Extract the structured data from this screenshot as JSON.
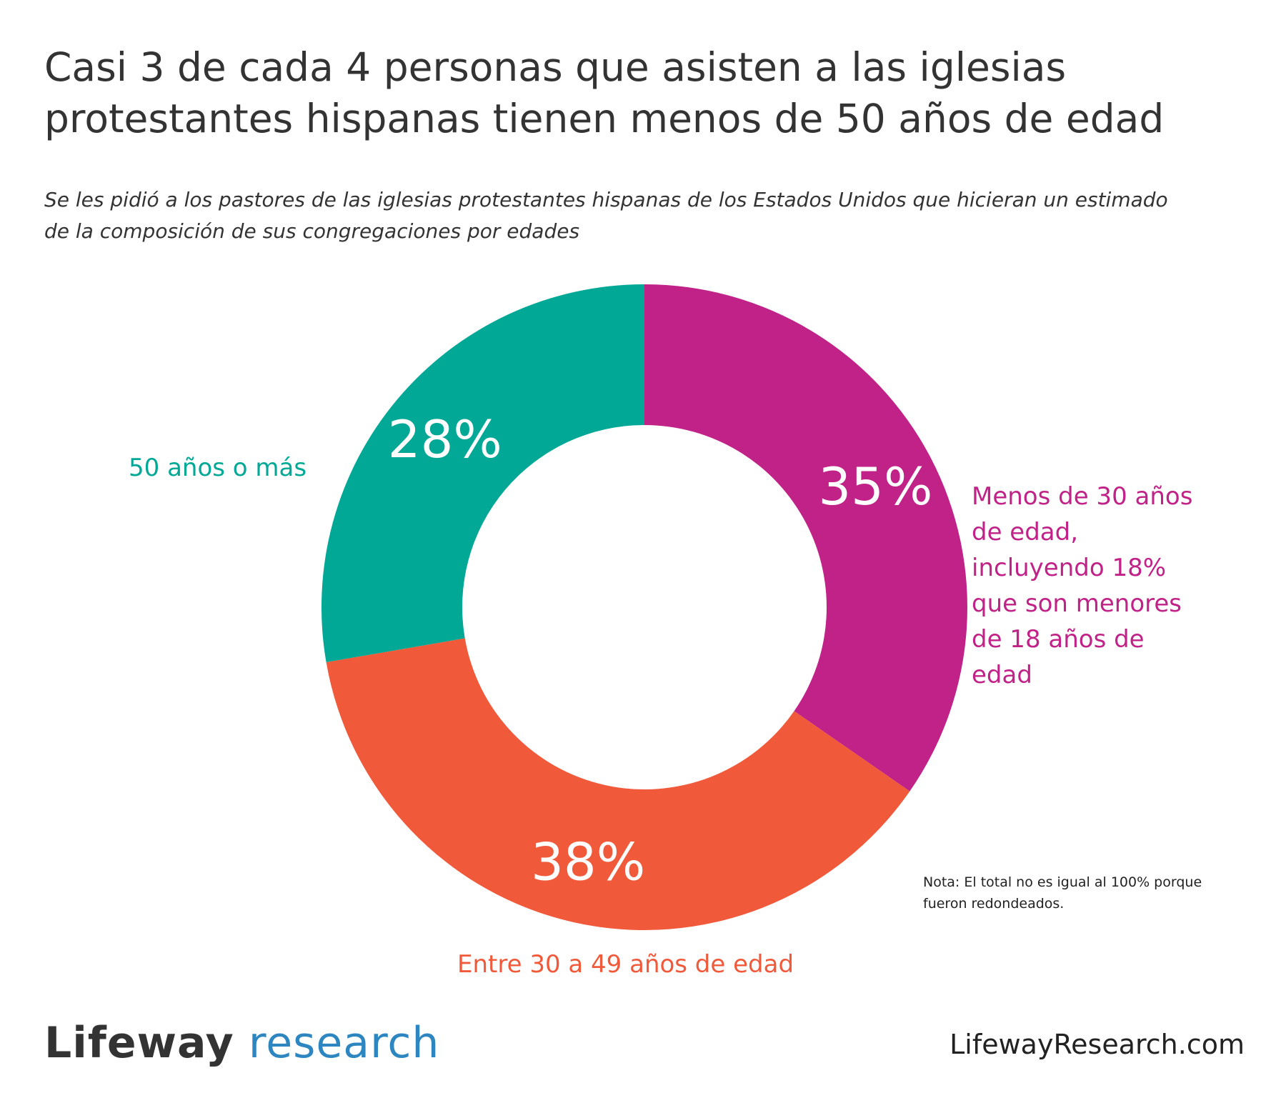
{
  "title": "Casi 3 de cada 4 personas que asisten a las iglesias protestantes hispanas tienen menos de 50 años de edad",
  "subtitle": "Se les pidió a los pastores de las iglesias protestantes hispanas de los Estados Unidos que hicieran un estimado de la composición de sus congregaciones por edades",
  "chart_data": {
    "type": "pie",
    "style": "donut",
    "slices": [
      {
        "label": "Menos de 30 años\n de edad,\n incluyendo 18%\n que son menores\n de 18 años de\n edad",
        "value": 35,
        "value_label": "35%",
        "color": "#c02287"
      },
      {
        "label": "Entre 30 a 49 años de edad",
        "value": 38,
        "value_label": "38%",
        "color": "#f05a3b"
      },
      {
        "label": "50 años o más",
        "value": 28,
        "value_label": "28%",
        "color": "#00a895"
      }
    ]
  },
  "note": "Nota: El total no es igual al 100% porque fueron redondeados.",
  "footer": {
    "logo_brand": "Lifeway",
    "logo_sub": "research",
    "website": "LifewayResearch.com"
  }
}
